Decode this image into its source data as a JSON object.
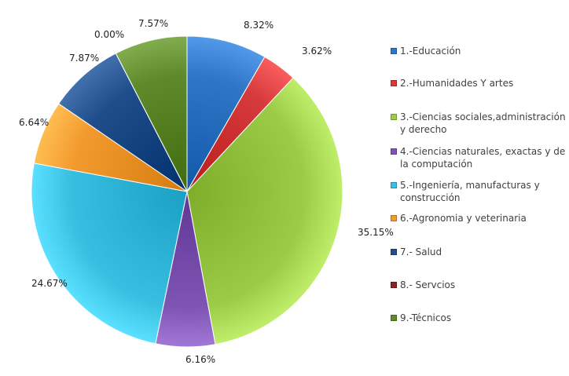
{
  "chart_data": {
    "type": "pie",
    "title": "",
    "start_angle_deg": 0,
    "direction": "clockwise",
    "slices": [
      {
        "label": "1.-Educación",
        "value": 8.32,
        "display": "8.32%",
        "color": "#2F76C7"
      },
      {
        "label": "2.-Humanidades Y artes",
        "value": 3.62,
        "display": "3.62%",
        "color": "#D63A3A"
      },
      {
        "label": "3.-Ciencias sociales,administración y derecho",
        "value": 35.15,
        "display": "35.15%",
        "color": "#9CCB47"
      },
      {
        "label": "4.-Ciencias naturales, exactas y de la computación",
        "value": 6.16,
        "display": "6.16%",
        "color": "#7E55B3"
      },
      {
        "label": "5.-Ingeniería, manufacturas y construcción",
        "value": 24.67,
        "display": "24.67%",
        "color": "#38BEE0"
      },
      {
        "label": "6.-Agronomia y veterinaria",
        "value": 6.64,
        "display": "6.64%",
        "color": "#F39A2E"
      },
      {
        "label": "7.- Salud",
        "value": 7.87,
        "display": "7.87%",
        "color": "#1F4E8A"
      },
      {
        "label": "8.- Servcios",
        "value": 0.0,
        "display": "0.00%",
        "color": "#8B2323"
      },
      {
        "label": "9.-Técnicos",
        "value": 7.57,
        "display": "7.57%",
        "color": "#5F8A2B"
      }
    ],
    "legend_position": "right"
  }
}
